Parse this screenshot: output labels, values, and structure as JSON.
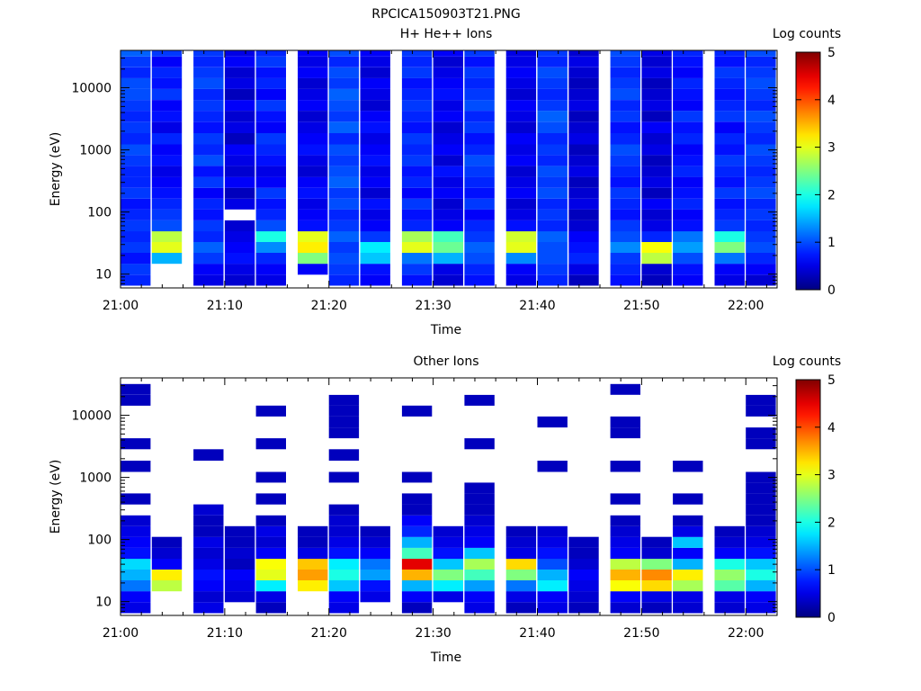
{
  "figure": {
    "filename": "RPCICA150903T21.PNG"
  },
  "colorbar": {
    "title": "Log counts",
    "range": [
      0,
      5
    ],
    "ticks": [
      "0",
      "1",
      "2",
      "3",
      "4",
      "5"
    ],
    "colormap": "jet"
  },
  "chart_data": [
    {
      "type": "heatmap",
      "title": "H+ He++ Ions",
      "xlabel": "Time",
      "ylabel": "Energy (eV)",
      "y_scale": "log",
      "ylim": [
        6,
        40000
      ],
      "xlim": [
        "21:00",
        "22:03"
      ],
      "x_ticks": [
        "21:00",
        "21:10",
        "21:20",
        "21:30",
        "21:40",
        "21:50",
        "22:00"
      ],
      "y_ticks": [
        "10",
        "100",
        "1000",
        "10000"
      ],
      "time_bins": [
        "21:00",
        "21:03",
        "21:07",
        "21:10",
        "21:13",
        "21:17",
        "21:20",
        "21:23",
        "21:27",
        "21:30",
        "21:33",
        "21:37",
        "21:40",
        "21:43",
        "21:47",
        "21:50",
        "21:53",
        "21:57",
        "22:00"
      ],
      "energy_bins_eV": [
        8,
        12,
        18,
        27,
        40,
        60,
        90,
        135,
        200,
        300,
        450,
        680,
        1000,
        1500,
        2300,
        3500,
        5200,
        7800,
        11700,
        17500,
        26000,
        39000
      ],
      "log_counts": [
        [
          0.8,
          0.9,
          0.7,
          0.9,
          0.8,
          0.9,
          0.8,
          0.7,
          0.9,
          0.8,
          0.8,
          0.9,
          1.0,
          0.8,
          0.9,
          0.8,
          0.9,
          1.0,
          1.0,
          0.8,
          0.9,
          1.1
        ],
        [
          null,
          null,
          1.5,
          3.0,
          2.8,
          1.0,
          0.9,
          0.8,
          0.7,
          0.6,
          0.5,
          0.7,
          0.6,
          0.8,
          0.5,
          0.7,
          0.6,
          0.9,
          0.7,
          0.8,
          0.6,
          0.9
        ],
        [
          0.5,
          0.6,
          0.9,
          1.1,
          0.8,
          0.9,
          0.7,
          0.8,
          0.6,
          0.9,
          0.7,
          1.0,
          0.8,
          0.9,
          0.7,
          0.8,
          0.9,
          0.8,
          1.0,
          0.9,
          0.8,
          0.9
        ],
        [
          0.4,
          0.5,
          0.7,
          0.6,
          0.5,
          0.4,
          null,
          0.5,
          0.3,
          0.6,
          0.4,
          0.5,
          0.6,
          0.3,
          0.5,
          0.4,
          0.6,
          0.3,
          0.5,
          0.4,
          0.6,
          0.5
        ],
        [
          0.5,
          0.6,
          0.8,
          1.3,
          2.0,
          1.0,
          0.8,
          0.7,
          0.9,
          0.6,
          0.5,
          0.7,
          0.8,
          0.9,
          0.6,
          0.7,
          0.9,
          0.6,
          0.8,
          0.7,
          0.9,
          0.8
        ],
        [
          null,
          0.6,
          2.5,
          3.2,
          3.0,
          0.7,
          0.6,
          0.5,
          0.7,
          0.6,
          0.4,
          0.5,
          0.7,
          0.6,
          0.5,
          0.4,
          0.6,
          0.5,
          0.4,
          0.6,
          0.5,
          0.6
        ],
        [
          0.8,
          0.9,
          1.0,
          0.9,
          1.1,
          0.9,
          0.8,
          1.0,
          0.9,
          1.1,
          1.0,
          0.9,
          1.0,
          0.8,
          1.1,
          0.9,
          1.0,
          1.1,
          0.9,
          1.0,
          0.8,
          1.0
        ],
        [
          0.6,
          0.7,
          1.6,
          1.8,
          0.9,
          0.6,
          0.5,
          0.7,
          0.4,
          0.6,
          0.5,
          0.7,
          0.6,
          0.5,
          0.7,
          0.6,
          0.4,
          0.5,
          0.6,
          0.4,
          0.5,
          0.6
        ],
        [
          0.7,
          0.9,
          1.2,
          3.0,
          2.7,
          0.8,
          0.7,
          0.9,
          0.6,
          0.8,
          0.7,
          0.9,
          0.8,
          0.9,
          0.7,
          0.8,
          0.9,
          0.8,
          0.7,
          0.9,
          0.8,
          0.9
        ],
        [
          0.4,
          0.5,
          1.5,
          2.4,
          2.2,
          0.6,
          0.5,
          0.4,
          0.6,
          0.5,
          0.7,
          0.4,
          0.6,
          0.5,
          0.4,
          0.6,
          0.5,
          0.7,
          0.6,
          0.5,
          0.4,
          0.6
        ],
        [
          0.7,
          0.8,
          1.0,
          1.1,
          0.9,
          0.8,
          0.6,
          0.9,
          0.7,
          0.8,
          0.9,
          1.0,
          0.8,
          0.7,
          0.9,
          0.8,
          1.0,
          0.9,
          0.8,
          0.9,
          0.7,
          0.9
        ],
        [
          0.5,
          0.6,
          1.3,
          3.0,
          2.9,
          0.7,
          0.5,
          0.4,
          0.6,
          0.5,
          0.4,
          0.6,
          0.5,
          0.6,
          0.4,
          0.5,
          0.6,
          0.4,
          0.5,
          0.6,
          0.5,
          0.5
        ],
        [
          0.8,
          0.9,
          1.0,
          1.0,
          1.1,
          0.8,
          0.9,
          0.8,
          1.0,
          0.9,
          1.0,
          0.8,
          0.9,
          0.8,
          1.0,
          1.1,
          0.9,
          0.8,
          0.9,
          1.0,
          0.8,
          0.9
        ],
        [
          0.3,
          0.5,
          0.8,
          0.7,
          0.6,
          0.4,
          0.3,
          0.5,
          0.4,
          0.3,
          0.5,
          0.4,
          0.3,
          0.5,
          0.4,
          0.3,
          0.5,
          0.4,
          0.3,
          0.4,
          0.5,
          0.4
        ],
        [
          0.7,
          0.8,
          0.9,
          1.3,
          1.0,
          0.9,
          0.7,
          0.8,
          0.9,
          0.7,
          0.8,
          0.9,
          1.0,
          0.8,
          0.7,
          0.9,
          0.8,
          1.0,
          0.9,
          0.8,
          0.9,
          1.0
        ],
        [
          0.3,
          0.4,
          2.8,
          3.1,
          0.8,
          0.5,
          0.4,
          0.6,
          0.3,
          0.5,
          0.4,
          0.3,
          0.5,
          0.4,
          0.6,
          0.3,
          0.5,
          0.4,
          0.3,
          0.5,
          0.4,
          0.5
        ],
        [
          0.6,
          0.7,
          1.0,
          1.4,
          1.2,
          0.7,
          0.6,
          0.8,
          0.7,
          0.6,
          0.8,
          0.7,
          0.6,
          0.8,
          0.7,
          0.9,
          0.6,
          0.7,
          0.8,
          0.6,
          0.7,
          0.8
        ],
        [
          0.5,
          0.6,
          1.2,
          2.5,
          2.0,
          0.9,
          0.8,
          0.7,
          0.9,
          0.7,
          0.8,
          0.9,
          0.7,
          0.8,
          0.6,
          0.9,
          0.8,
          0.7,
          0.8,
          0.9,
          0.7,
          0.8
        ],
        [
          0.4,
          0.6,
          0.8,
          1.0,
          0.9,
          0.8,
          0.9,
          0.8,
          1.0,
          0.9,
          0.8,
          0.9,
          1.0,
          0.8,
          0.9,
          1.0,
          0.8,
          0.9,
          1.0,
          0.9,
          0.8,
          1.0
        ]
      ]
    },
    {
      "type": "heatmap",
      "title": "Other Ions",
      "xlabel": "Time",
      "ylabel": "Energy (eV)",
      "y_scale": "log",
      "ylim": [
        6,
        40000
      ],
      "xlim": [
        "21:00",
        "22:03"
      ],
      "x_ticks": [
        "21:00",
        "21:10",
        "21:20",
        "21:30",
        "21:40",
        "21:50",
        "22:00"
      ],
      "y_ticks": [
        "10",
        "100",
        "1000",
        "10000"
      ],
      "time_bins": [
        "21:00",
        "21:03",
        "21:07",
        "21:10",
        "21:13",
        "21:17",
        "21:20",
        "21:23",
        "21:27",
        "21:30",
        "21:33",
        "21:37",
        "21:40",
        "21:43",
        "21:47",
        "21:50",
        "21:53",
        "21:57",
        "22:00"
      ],
      "energy_bins_eV": [
        8,
        12,
        18,
        27,
        40,
        60,
        90,
        135,
        200,
        300,
        450,
        680,
        1000,
        1500,
        2300,
        3500,
        5200,
        7800,
        11700,
        17500,
        26000,
        39000
      ],
      "log_counts": [
        [
          0.5,
          0.6,
          1.2,
          1.5,
          1.7,
          0.7,
          0.6,
          0.5,
          0.4,
          null,
          0.3,
          null,
          null,
          0.3,
          null,
          0.3,
          null,
          null,
          null,
          0.3,
          0.3,
          null
        ],
        [
          null,
          null,
          2.8,
          3.2,
          0.6,
          0.4,
          0.3,
          null,
          null,
          null,
          null,
          null,
          null,
          null,
          null,
          null,
          null,
          null,
          null,
          null,
          null,
          null
        ],
        [
          0.5,
          0.4,
          0.6,
          0.7,
          0.5,
          0.4,
          0.5,
          0.3,
          0.3,
          0.4,
          null,
          null,
          null,
          null,
          0.3,
          null,
          null,
          null,
          null,
          null,
          null,
          null
        ],
        [
          null,
          0.4,
          0.5,
          0.6,
          0.3,
          0.4,
          0.3,
          0.3,
          null,
          null,
          null,
          null,
          null,
          null,
          null,
          null,
          null,
          null,
          null,
          null,
          null,
          null
        ],
        [
          0.3,
          0.5,
          1.8,
          3.0,
          3.1,
          0.6,
          0.4,
          0.5,
          0.3,
          null,
          0.3,
          null,
          0.3,
          null,
          null,
          0.3,
          null,
          null,
          0.3,
          null,
          null,
          null
        ],
        [
          null,
          null,
          3.2,
          3.6,
          3.4,
          0.5,
          0.3,
          0.3,
          null,
          null,
          null,
          null,
          null,
          null,
          null,
          null,
          null,
          null,
          null,
          null,
          null,
          null
        ],
        [
          0.5,
          0.6,
          1.6,
          2.0,
          1.8,
          0.7,
          0.5,
          0.4,
          0.4,
          0.3,
          null,
          null,
          0.3,
          null,
          0.3,
          null,
          0.3,
          0.3,
          0.3,
          0.3,
          null,
          null
        ],
        [
          null,
          0.5,
          0.7,
          1.4,
          1.2,
          0.6,
          0.4,
          0.3,
          null,
          null,
          null,
          null,
          null,
          null,
          null,
          null,
          null,
          null,
          null,
          null,
          null,
          null
        ],
        [
          0.3,
          0.6,
          1.5,
          3.5,
          4.5,
          2.2,
          1.5,
          0.8,
          0.6,
          0.3,
          0.3,
          null,
          0.3,
          null,
          null,
          null,
          null,
          null,
          0.3,
          null,
          null,
          null
        ],
        [
          null,
          0.5,
          1.8,
          2.5,
          1.6,
          0.7,
          0.5,
          0.4,
          null,
          null,
          null,
          null,
          null,
          null,
          null,
          null,
          null,
          null,
          null,
          null,
          null,
          null
        ],
        [
          0.5,
          0.6,
          1.4,
          2.2,
          2.7,
          1.6,
          0.6,
          0.5,
          0.4,
          0.3,
          0.3,
          0.3,
          null,
          null,
          null,
          0.3,
          null,
          null,
          null,
          0.3,
          null,
          null
        ],
        [
          0.3,
          0.5,
          1.2,
          2.5,
          3.3,
          0.5,
          0.4,
          0.3,
          null,
          null,
          null,
          null,
          null,
          null,
          null,
          null,
          null,
          null,
          null,
          null,
          null,
          null
        ],
        [
          0.5,
          0.6,
          1.8,
          1.5,
          1.0,
          0.7,
          0.5,
          0.4,
          null,
          null,
          null,
          null,
          null,
          0.3,
          null,
          null,
          null,
          0.3,
          null,
          null,
          null,
          null
        ],
        [
          0.3,
          0.4,
          0.5,
          0.6,
          0.4,
          0.3,
          0.3,
          null,
          null,
          null,
          null,
          null,
          null,
          null,
          null,
          null,
          null,
          null,
          null,
          null,
          null,
          null
        ],
        [
          0.4,
          0.6,
          3.1,
          3.5,
          2.8,
          0.6,
          0.5,
          0.4,
          0.3,
          null,
          0.3,
          null,
          null,
          0.3,
          null,
          null,
          0.3,
          0.3,
          null,
          null,
          0.3,
          null
        ],
        [
          0.3,
          0.5,
          3.3,
          3.7,
          2.5,
          0.4,
          0.3,
          null,
          null,
          null,
          null,
          null,
          null,
          null,
          null,
          null,
          null,
          null,
          null,
          null,
          null,
          null
        ],
        [
          0.4,
          0.5,
          2.7,
          3.2,
          1.5,
          0.6,
          1.6,
          0.5,
          0.3,
          null,
          0.3,
          null,
          null,
          0.3,
          null,
          null,
          null,
          null,
          null,
          null,
          null,
          null
        ],
        [
          0.4,
          0.5,
          2.3,
          2.6,
          2.0,
          0.6,
          0.4,
          0.3,
          null,
          null,
          null,
          null,
          null,
          null,
          null,
          null,
          null,
          null,
          null,
          null,
          null,
          null
        ],
        [
          0.5,
          0.6,
          1.5,
          2.0,
          1.6,
          0.7,
          0.5,
          0.4,
          0.3,
          0.3,
          0.3,
          0.3,
          0.3,
          null,
          null,
          0.3,
          0.3,
          null,
          0.3,
          0.3,
          null,
          null
        ]
      ]
    }
  ]
}
